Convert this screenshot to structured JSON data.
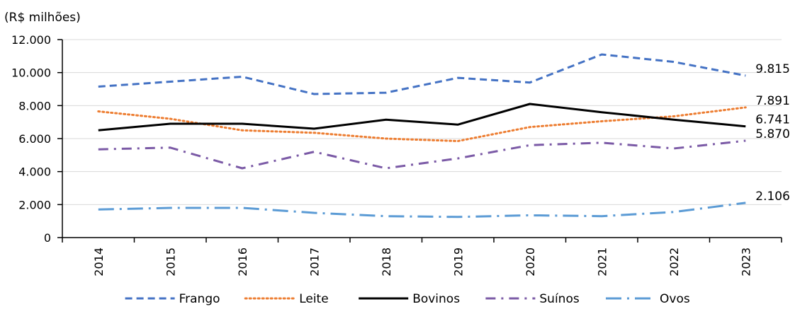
{
  "chart_data": {
    "type": "line",
    "unit_label": "(R$ milhões)",
    "categories": [
      "2014",
      "2015",
      "2016",
      "2017",
      "2018",
      "2019",
      "2020",
      "2021",
      "2022",
      "2023"
    ],
    "ylim": [
      0,
      12000
    ],
    "yticks": [
      0,
      2000,
      4000,
      6000,
      8000,
      10000,
      12000
    ],
    "ytick_labels": [
      "0",
      "2.000",
      "4.000",
      "6.000",
      "8.000",
      "10.000",
      "12.000"
    ],
    "grid": true,
    "legend_position": "bottom",
    "series": [
      {
        "name": "Frango",
        "color": "#4472C4",
        "style": "dashed",
        "values": [
          9150,
          9450,
          9750,
          8700,
          8780,
          9680,
          9400,
          11100,
          10650,
          9815
        ],
        "end_label": "9.815"
      },
      {
        "name": "Leite",
        "color": "#ED7D31",
        "style": "dotted",
        "values": [
          7650,
          7200,
          6500,
          6350,
          6000,
          5850,
          6700,
          7050,
          7350,
          7891
        ],
        "end_label": "7.891"
      },
      {
        "name": "Bovinos",
        "color": "#000000",
        "style": "solid",
        "values": [
          6500,
          6900,
          6900,
          6600,
          7150,
          6850,
          8100,
          7600,
          7150,
          6741
        ],
        "end_label": "6.741"
      },
      {
        "name": "Suínos",
        "color": "#7B5AA6",
        "style": "dashdot",
        "values": [
          5350,
          5450,
          4200,
          5200,
          4200,
          4800,
          5600,
          5750,
          5400,
          5870
        ],
        "end_label": "5.870"
      },
      {
        "name": "Ovos",
        "color": "#5B9BD5",
        "style": "longdashdot",
        "values": [
          1700,
          1800,
          1800,
          1500,
          1300,
          1250,
          1350,
          1300,
          1550,
          2106
        ],
        "end_label": "2.106"
      }
    ]
  }
}
